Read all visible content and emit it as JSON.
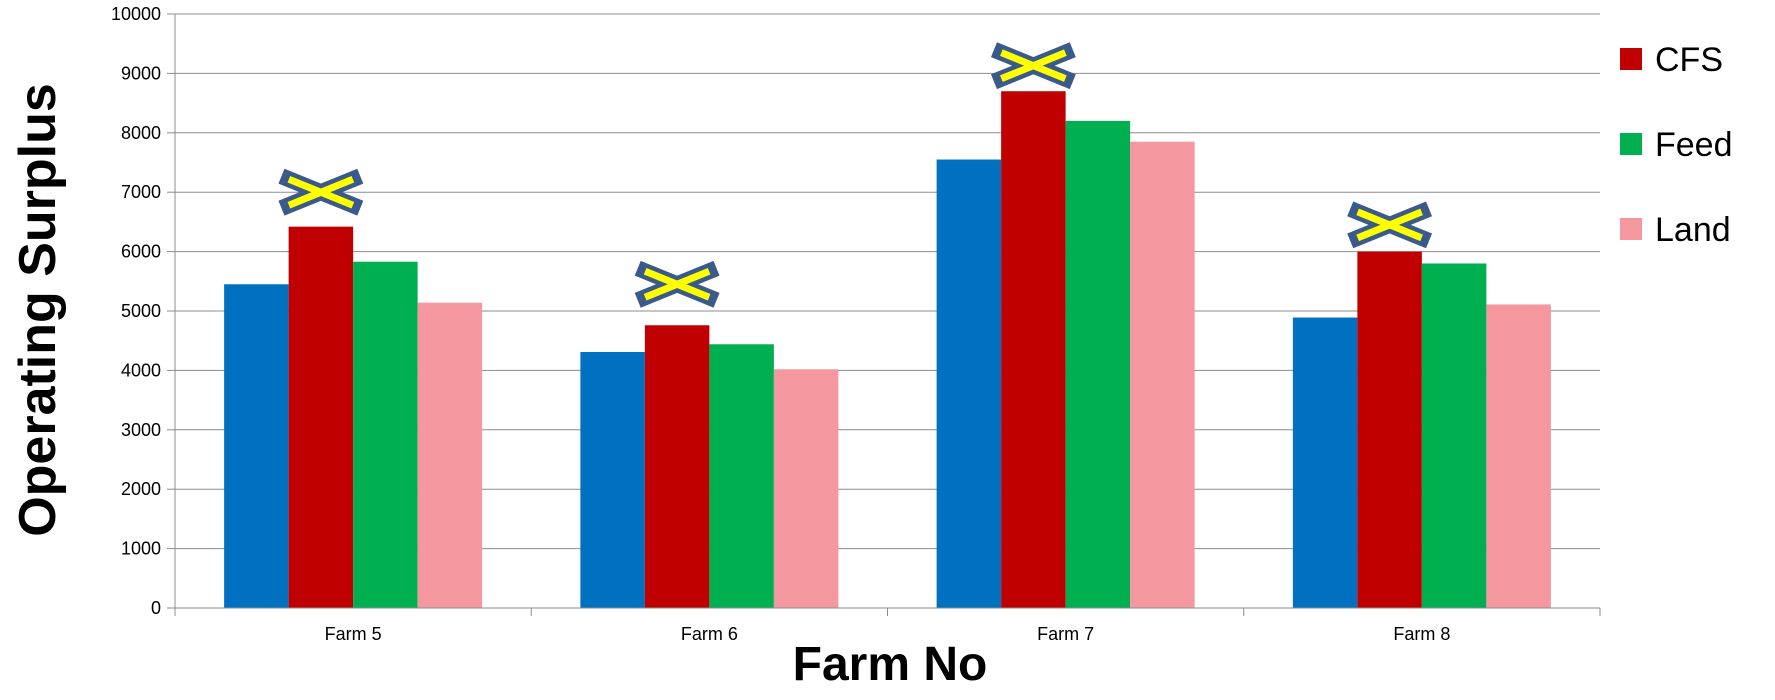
{
  "chart_data": {
    "type": "bar",
    "title": "",
    "xlabel": "Farm No",
    "ylabel": "Operating Surplus",
    "categories": [
      "Farm 5",
      "Farm 6",
      "Farm 7",
      "Farm 8"
    ],
    "ylim": [
      0,
      10000
    ],
    "yticks": [
      0,
      1000,
      2000,
      3000,
      4000,
      5000,
      6000,
      7000,
      8000,
      9000,
      10000
    ],
    "grid": true,
    "legend_position": "right",
    "series": [
      {
        "values": [
          5450,
          4310,
          7550,
          4890
        ]
      },
      {
        "name": "CFS",
        "values": [
          6420,
          4760,
          8700,
          6000
        ]
      },
      {
        "name": "Feed",
        "values": [
          5830,
          4440,
          8200,
          5800
        ]
      },
      {
        "name": "Land",
        "values": [
          5140,
          4020,
          7850,
          5110
        ]
      }
    ],
    "colors": [
      "#0070c0",
      "#c00000",
      "#00b050",
      "#f4979f"
    ],
    "markers": {
      "series": "CFS",
      "y_values": [
        7000,
        5450,
        9130,
        6450
      ],
      "symbol": "x-mark",
      "fill": "#ffff00",
      "outline": "#3b5a8c"
    }
  }
}
